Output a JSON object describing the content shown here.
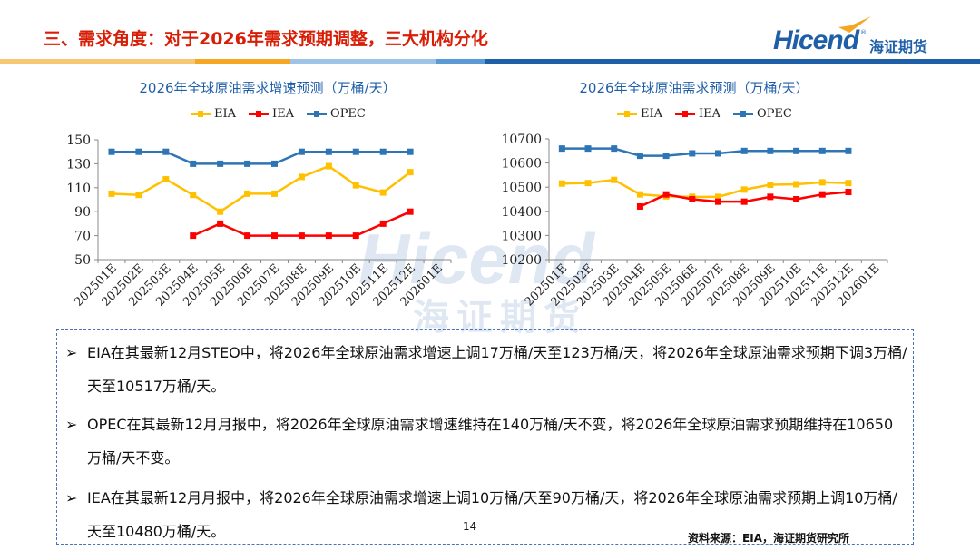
{
  "header": {
    "title": "三、需求角度：对于2026年需求预期调整，三大机构分化",
    "logo_word": "Hicend",
    "logo_cn": "海证期货"
  },
  "colors": {
    "eia": "#ffc000",
    "iea": "#ff0000",
    "opec": "#2e75b6",
    "title": "#d81e06",
    "accent": "#1f5fa8"
  },
  "legend": {
    "eia": "EIA",
    "iea": "IEA",
    "opec": "OPEC"
  },
  "chart_data": [
    {
      "type": "line",
      "title": "2026年全球原油需求增速预测（万桶/天）",
      "categories": [
        "202501E",
        "202502E",
        "202503E",
        "202504E",
        "202505E",
        "202506E",
        "202507E",
        "202508E",
        "202509E",
        "202510E",
        "202511E",
        "202512E",
        "202601E"
      ],
      "ylim": [
        50,
        150
      ],
      "yticks": [
        50,
        70,
        90,
        110,
        130,
        150
      ],
      "grid": false,
      "legend_position": "top",
      "series": [
        {
          "name": "EIA",
          "values": [
            105,
            104,
            117,
            104,
            90,
            105,
            105,
            119,
            128,
            112,
            106,
            123,
            null
          ]
        },
        {
          "name": "IEA",
          "values": [
            null,
            null,
            null,
            70,
            80,
            70,
            70,
            70,
            70,
            70,
            80,
            90,
            null
          ]
        },
        {
          "name": "OPEC",
          "values": [
            140,
            140,
            140,
            130,
            130,
            130,
            130,
            140,
            140,
            140,
            140,
            140,
            null
          ]
        }
      ]
    },
    {
      "type": "line",
      "title": "2026年全球原油需求预测（万桶/天）",
      "categories": [
        "202501E",
        "202502E",
        "202503E",
        "202504E",
        "202505E",
        "202506E",
        "202507E",
        "202508E",
        "202509E",
        "202510E",
        "202511E",
        "202512E",
        "202601E"
      ],
      "ylim": [
        10200,
        10700
      ],
      "yticks": [
        10200,
        10300,
        10400,
        10500,
        10600,
        10700
      ],
      "grid": false,
      "legend_position": "top",
      "series": [
        {
          "name": "EIA",
          "values": [
            10515,
            10517,
            10530,
            10470,
            10462,
            10460,
            10460,
            10490,
            10510,
            10512,
            10520,
            10517,
            null
          ]
        },
        {
          "name": "IEA",
          "values": [
            null,
            null,
            null,
            10420,
            10470,
            10450,
            10440,
            10440,
            10460,
            10450,
            10470,
            10480,
            null
          ]
        },
        {
          "name": "OPEC",
          "values": [
            10660,
            10660,
            10660,
            10630,
            10630,
            10640,
            10640,
            10650,
            10650,
            10650,
            10650,
            10650,
            null
          ]
        }
      ]
    }
  ],
  "notes": [
    "EIA在其最新12月STEO中，将2026年全球原油需求增速上调17万桶/天至123万桶/天，将2026年全球原油需求预期下调3万桶/天至10517万桶/天。",
    "OPEC在其最新12月月报中，将2026年全球原油需求增速维持在140万桶/天不变，将2026年全球原油需求预期维持在10650万桶/天不变。",
    "IEA在其最新12月月报中，将2026年全球原油需求增速上调10万桶/天至90万桶/天，将2026年全球原油需求预期上调10万桶/天至10480万桶/天。"
  ],
  "bullet_glyph": "➢",
  "page_number": "14",
  "source": "资料来源：EIA，海证期货研究所"
}
